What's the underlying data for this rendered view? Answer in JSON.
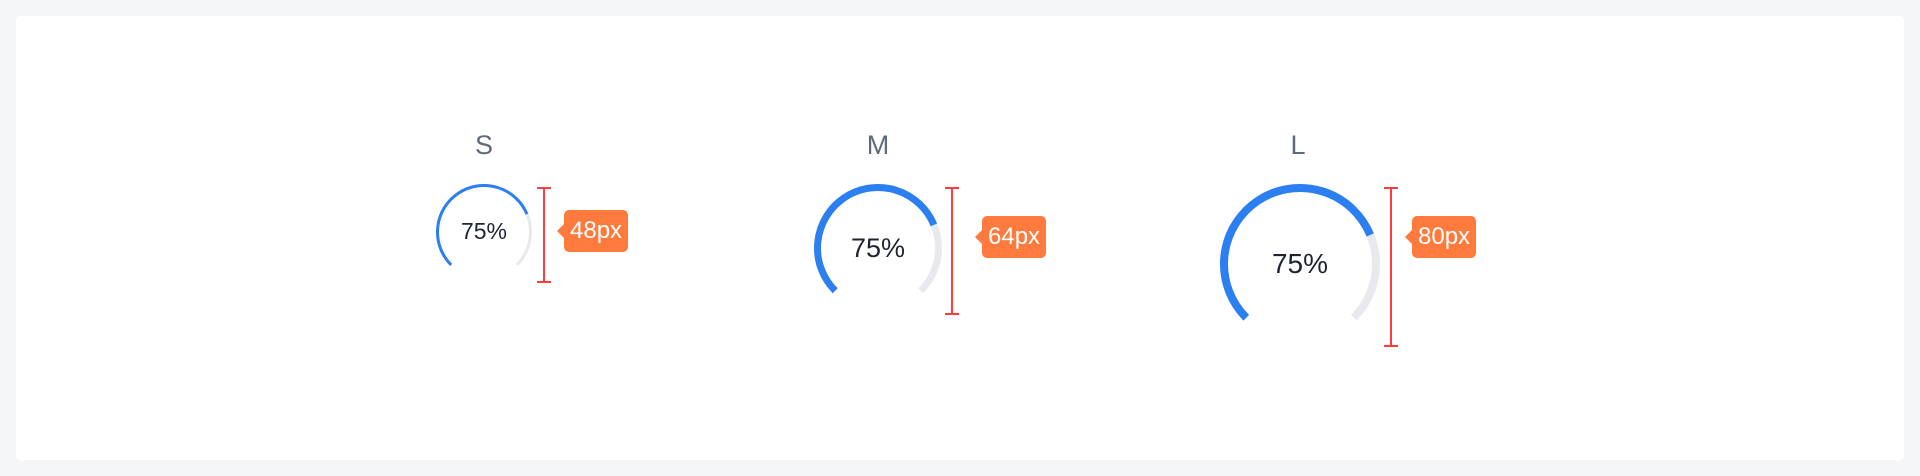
{
  "theme": {
    "accent": "#2b7ff0",
    "track": "#e8e9ed",
    "measure": "#ff3b3b",
    "tag": "#ff7a3d"
  },
  "variants": [
    {
      "size": "S",
      "value_text": "75%",
      "progress": 0.75,
      "dimension": "48px"
    },
    {
      "size": "M",
      "value_text": "75%",
      "progress": 0.75,
      "dimension": "64px"
    },
    {
      "size": "L",
      "value_text": "75%",
      "progress": 0.75,
      "dimension": "80px"
    }
  ]
}
